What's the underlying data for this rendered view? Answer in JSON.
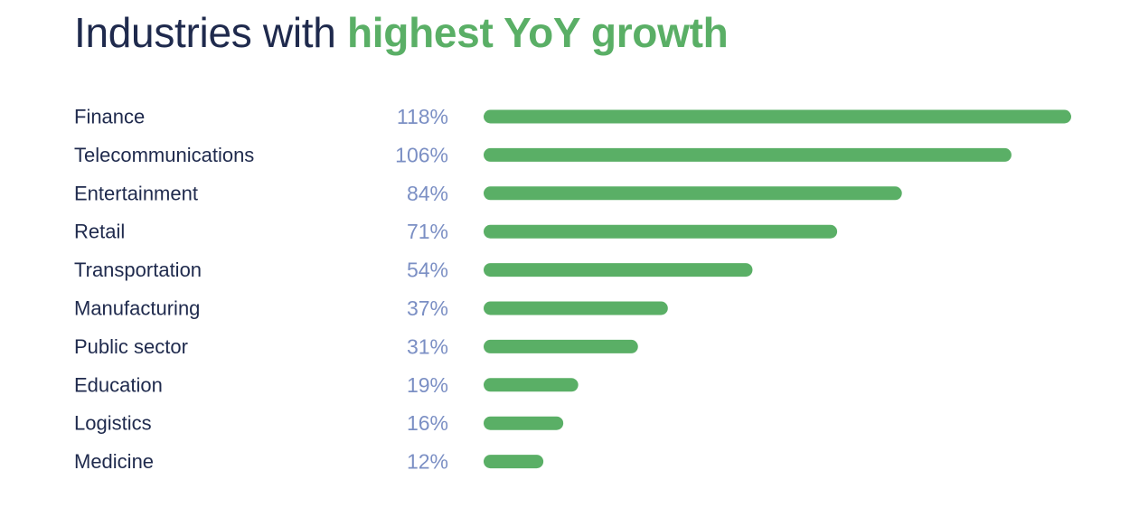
{
  "header": {
    "title_part1": "Industries with ",
    "title_part2": "highest YoY growth"
  },
  "colors": {
    "title": "#1f2a4d",
    "title_highlight": "#5aaf66",
    "bar": "#5aaf66",
    "value_text": "#7b8fc4",
    "label_text": "#1f2a4d"
  },
  "chart_data": {
    "type": "bar",
    "orientation": "horizontal",
    "title": "Industries with highest YoY growth",
    "categories": [
      "Finance",
      "Telecommunications",
      "Entertainment",
      "Retail",
      "Transportation",
      "Manufacturing",
      "Public sector",
      "Education",
      "Logistics",
      "Medicine"
    ],
    "values": [
      118,
      106,
      84,
      71,
      54,
      37,
      31,
      19,
      16,
      12
    ],
    "value_labels": [
      "118%",
      "106%",
      "84%",
      "71%",
      "54%",
      "37%",
      "31%",
      "19%",
      "16%",
      "12%"
    ],
    "xlim": [
      0,
      118
    ],
    "grid": false,
    "legend": "none"
  }
}
